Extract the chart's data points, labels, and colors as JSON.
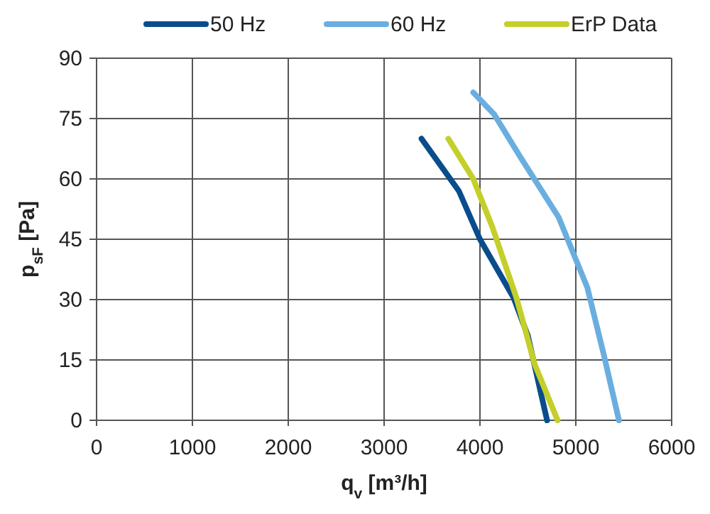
{
  "chart_data": {
    "type": "line",
    "xlabel": "q$_{v}$ [m³/h]",
    "ylabel": "p$_{sF}$ [Pa]",
    "xlim": [
      0,
      6000
    ],
    "xticks": [
      0,
      1000,
      2000,
      3000,
      4000,
      5000,
      6000
    ],
    "ylim": [
      0,
      90
    ],
    "yticks": [
      0,
      15,
      30,
      45,
      60,
      75,
      90
    ],
    "grid": true,
    "legend": "top",
    "line_style": "solid",
    "series": [
      {
        "name": "50 Hz",
        "color": "#0a4d8c",
        "x": [
          3390,
          3780,
          4000,
          4350,
          4500,
          4700
        ],
        "values": [
          70,
          57,
          45,
          30.5,
          21,
          0
        ]
      },
      {
        "name": "60 Hz",
        "color": "#6aaee0",
        "x": [
          3930,
          4150,
          4420,
          4820,
          5120,
          5290,
          5450
        ],
        "values": [
          81.5,
          76,
          65.5,
          50.5,
          33,
          16.5,
          0
        ]
      },
      {
        "name": "ErP Data",
        "color": "#c4cf2a",
        "x": [
          3670,
          3930,
          4130,
          4380,
          4570,
          4810
        ],
        "values": [
          70,
          60,
          48,
          30.5,
          14,
          0
        ]
      }
    ]
  }
}
